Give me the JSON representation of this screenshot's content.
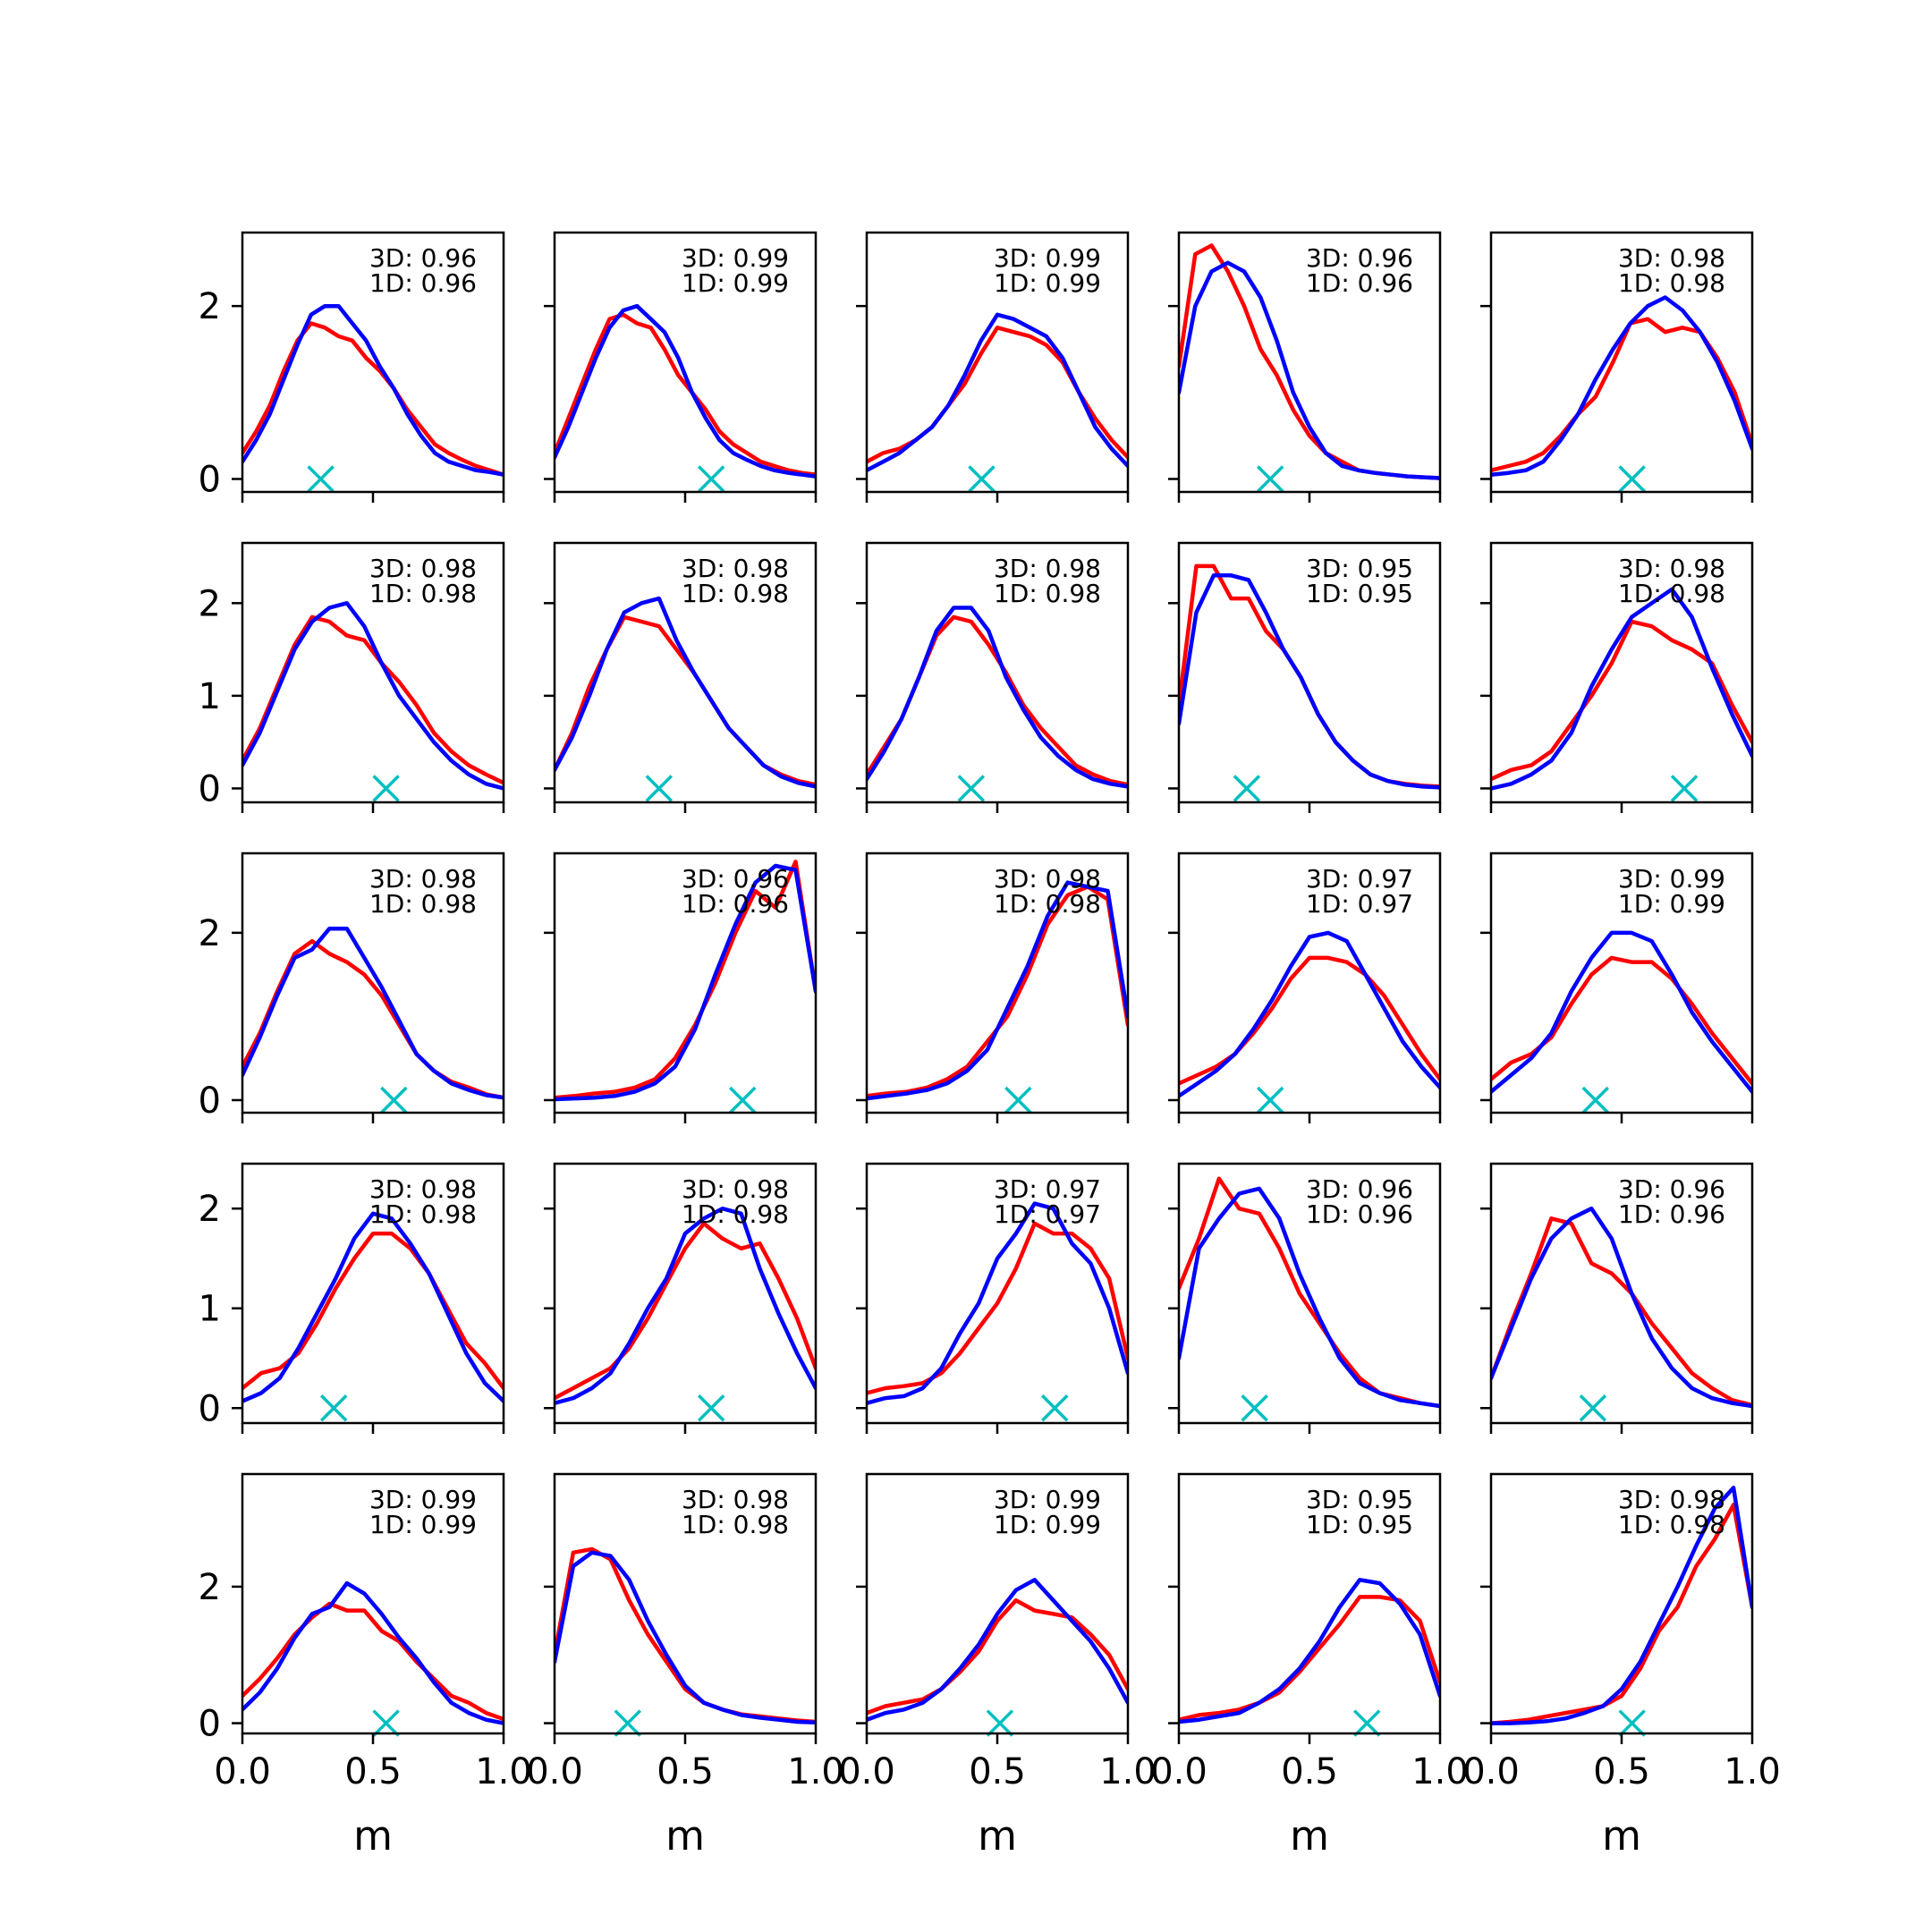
{
  "chart_data": {
    "type": "line",
    "layout": {
      "rows": 5,
      "cols": 5
    },
    "xlabel": "m",
    "xlim": [
      0,
      1
    ],
    "x_ticks": [
      "0.0",
      "0.5",
      "1.0"
    ],
    "row_ylim": [
      [
        -0.15,
        2.85
      ],
      [
        -0.15,
        2.65
      ],
      [
        -0.15,
        2.95
      ],
      [
        -0.15,
        2.45
      ],
      [
        -0.15,
        3.65
      ]
    ],
    "row_y_ticks": [
      [
        {
          "v": 0,
          "label": "0"
        },
        {
          "v": 2,
          "label": "2"
        }
      ],
      [
        {
          "v": 0,
          "label": "0"
        },
        {
          "v": 1,
          "label": "1"
        },
        {
          "v": 2,
          "label": "2"
        }
      ],
      [
        {
          "v": 0,
          "label": "0"
        },
        {
          "v": 2,
          "label": "2"
        }
      ],
      [
        {
          "v": 0,
          "label": "0"
        },
        {
          "v": 1,
          "label": "1"
        },
        {
          "v": 2,
          "label": "2"
        }
      ],
      [
        {
          "v": 0,
          "label": "0"
        },
        {
          "v": 2,
          "label": "2"
        }
      ]
    ],
    "series_colors": {
      "red": "#ff0000",
      "blue": "#0000ff",
      "marker": "#00bfbf"
    },
    "x": [
      0.0,
      0.05,
      0.1,
      0.15,
      0.2,
      0.25,
      0.3,
      0.35,
      0.4,
      0.45,
      0.5,
      0.55,
      0.6,
      0.65,
      0.7,
      0.75,
      0.8,
      0.85,
      0.9,
      0.95,
      1.0
    ],
    "panels": [
      {
        "stat_3d": "3D: 0.96",
        "stat_1d": "1D: 0.96",
        "marker_x": 0.3,
        "red": [
          0.3,
          0.55,
          0.85,
          1.25,
          1.6,
          1.8,
          1.75,
          1.65,
          1.6,
          1.4,
          1.25,
          1.05,
          0.8,
          0.6,
          0.4,
          0.3,
          0.22,
          0.15,
          0.1,
          0.05
        ],
        "blue": [
          0.2,
          0.45,
          0.75,
          1.15,
          1.55,
          1.9,
          2.0,
          2.0,
          1.8,
          1.6,
          1.3,
          1.05,
          0.75,
          0.5,
          0.3,
          0.2,
          0.15,
          0.1,
          0.08,
          0.05
        ]
      },
      {
        "stat_3d": "3D: 0.99",
        "stat_1d": "1D: 0.99",
        "marker_x": 0.6,
        "red": [
          0.3,
          0.7,
          1.1,
          1.5,
          1.85,
          1.9,
          1.8,
          1.75,
          1.5,
          1.2,
          1.0,
          0.8,
          0.55,
          0.4,
          0.3,
          0.2,
          0.15,
          0.1,
          0.07,
          0.05
        ],
        "blue": [
          0.25,
          0.6,
          1.0,
          1.4,
          1.75,
          1.95,
          2.0,
          1.85,
          1.7,
          1.4,
          1.0,
          0.7,
          0.45,
          0.3,
          0.22,
          0.15,
          0.1,
          0.07,
          0.05,
          0.03
        ]
      },
      {
        "stat_3d": "3D: 0.99",
        "stat_1d": "1D: 0.99",
        "marker_x": 0.44,
        "red": [
          0.2,
          0.3,
          0.35,
          0.45,
          0.6,
          0.85,
          1.1,
          1.45,
          1.75,
          1.7,
          1.65,
          1.55,
          1.35,
          1.0,
          0.7,
          0.45,
          0.25
        ],
        "blue": [
          0.1,
          0.2,
          0.3,
          0.45,
          0.6,
          0.85,
          1.2,
          1.6,
          1.9,
          1.85,
          1.75,
          1.65,
          1.4,
          1.0,
          0.6,
          0.35,
          0.15
        ]
      },
      {
        "stat_3d": "3D: 0.96",
        "stat_1d": "1D: 0.96",
        "marker_x": 0.35,
        "red": [
          1.3,
          2.6,
          2.7,
          2.4,
          2.0,
          1.5,
          1.2,
          0.8,
          0.5,
          0.3,
          0.2,
          0.1,
          0.07,
          0.05,
          0.03,
          0.02,
          0.01
        ],
        "blue": [
          1.0,
          2.0,
          2.4,
          2.5,
          2.4,
          2.1,
          1.6,
          1.0,
          0.6,
          0.3,
          0.15,
          0.1,
          0.07,
          0.05,
          0.03,
          0.02,
          0.01
        ]
      },
      {
        "stat_3d": "3D: 0.98",
        "stat_1d": "1D: 0.98",
        "marker_x": 0.54,
        "red": [
          0.1,
          0.15,
          0.2,
          0.3,
          0.5,
          0.75,
          0.95,
          1.35,
          1.8,
          1.85,
          1.7,
          1.75,
          1.7,
          1.4,
          1.0,
          0.4
        ],
        "blue": [
          0.05,
          0.07,
          0.1,
          0.2,
          0.45,
          0.75,
          1.15,
          1.5,
          1.8,
          2.0,
          2.1,
          1.95,
          1.7,
          1.35,
          0.9,
          0.35
        ]
      },
      {
        "stat_3d": "3D: 0.98",
        "stat_1d": "1D: 0.98",
        "marker_x": 0.55,
        "red": [
          0.3,
          0.65,
          1.1,
          1.55,
          1.85,
          1.8,
          1.65,
          1.6,
          1.35,
          1.15,
          0.9,
          0.6,
          0.4,
          0.25,
          0.15,
          0.06
        ],
        "blue": [
          0.25,
          0.6,
          1.05,
          1.5,
          1.8,
          1.95,
          2.0,
          1.75,
          1.35,
          1.0,
          0.75,
          0.5,
          0.3,
          0.15,
          0.05,
          0.0
        ]
      },
      {
        "stat_3d": "3D: 0.98",
        "stat_1d": "1D: 0.98",
        "marker_x": 0.4,
        "red": [
          0.2,
          0.6,
          1.1,
          1.5,
          1.85,
          1.8,
          1.75,
          1.5,
          1.25,
          0.95,
          0.65,
          0.45,
          0.25,
          0.15,
          0.08,
          0.04
        ],
        "blue": [
          0.2,
          0.55,
          1.0,
          1.5,
          1.9,
          2.0,
          2.05,
          1.6,
          1.25,
          0.95,
          0.65,
          0.45,
          0.25,
          0.13,
          0.06,
          0.02
        ]
      },
      {
        "stat_3d": "3D: 0.98",
        "stat_1d": "1D: 0.98",
        "marker_x": 0.4,
        "red": [
          0.15,
          0.45,
          0.75,
          1.2,
          1.65,
          1.85,
          1.8,
          1.55,
          1.25,
          0.9,
          0.65,
          0.45,
          0.25,
          0.15,
          0.08,
          0.04
        ],
        "blue": [
          0.1,
          0.4,
          0.75,
          1.2,
          1.7,
          1.95,
          1.95,
          1.7,
          1.2,
          0.85,
          0.55,
          0.35,
          0.2,
          0.1,
          0.05,
          0.02
        ]
      },
      {
        "stat_3d": "3D: 0.95",
        "stat_1d": "1D: 0.95",
        "marker_x": 0.26,
        "red": [
          0.9,
          2.4,
          2.4,
          2.05,
          2.05,
          1.7,
          1.5,
          1.2,
          0.8,
          0.5,
          0.3,
          0.15,
          0.08,
          0.05,
          0.03,
          0.02
        ],
        "blue": [
          0.7,
          1.9,
          2.3,
          2.3,
          2.25,
          1.9,
          1.5,
          1.2,
          0.8,
          0.5,
          0.3,
          0.15,
          0.08,
          0.04,
          0.02,
          0.01
        ]
      },
      {
        "stat_3d": "3D: 0.98",
        "stat_1d": "1D: 0.98",
        "marker_x": 0.74,
        "red": [
          0.1,
          0.2,
          0.25,
          0.4,
          0.7,
          1.0,
          1.35,
          1.8,
          1.75,
          1.6,
          1.5,
          1.35,
          0.9,
          0.5
        ],
        "blue": [
          0.0,
          0.05,
          0.15,
          0.3,
          0.6,
          1.1,
          1.5,
          1.85,
          2.0,
          2.15,
          1.85,
          1.3,
          0.8,
          0.35
        ]
      },
      {
        "stat_3d": "3D: 0.98",
        "stat_1d": "1D: 0.98",
        "marker_x": 0.58,
        "red": [
          0.4,
          0.8,
          1.3,
          1.75,
          1.9,
          1.75,
          1.65,
          1.5,
          1.25,
          0.9,
          0.55,
          0.35,
          0.22,
          0.15,
          0.07,
          0.03
        ],
        "blue": [
          0.3,
          0.75,
          1.25,
          1.7,
          1.8,
          2.05,
          2.05,
          1.7,
          1.35,
          0.95,
          0.55,
          0.35,
          0.2,
          0.12,
          0.06,
          0.03
        ]
      },
      {
        "stat_3d": "3D: 0.96",
        "stat_1d": "1D: 0.96",
        "marker_x": 0.72,
        "red": [
          0.03,
          0.05,
          0.08,
          0.1,
          0.15,
          0.25,
          0.5,
          0.9,
          1.4,
          2.0,
          2.5,
          2.3,
          2.85,
          1.3
        ],
        "blue": [
          0.01,
          0.02,
          0.03,
          0.05,
          0.1,
          0.2,
          0.4,
          0.85,
          1.5,
          2.1,
          2.6,
          2.8,
          2.75,
          1.3
        ]
      },
      {
        "stat_3d": "3D: 0.98",
        "stat_1d": "1D: 0.98",
        "marker_x": 0.58,
        "red": [
          0.05,
          0.08,
          0.1,
          0.15,
          0.25,
          0.4,
          0.7,
          1.0,
          1.5,
          2.1,
          2.45,
          2.55,
          2.4,
          0.9
        ],
        "blue": [
          0.02,
          0.05,
          0.08,
          0.12,
          0.2,
          0.35,
          0.6,
          1.1,
          1.6,
          2.2,
          2.6,
          2.55,
          2.5,
          1.0
        ]
      },
      {
        "stat_3d": "3D: 0.97",
        "stat_1d": "1D: 0.97",
        "marker_x": 0.35,
        "red": [
          0.2,
          0.3,
          0.4,
          0.55,
          0.8,
          1.1,
          1.45,
          1.7,
          1.7,
          1.65,
          1.5,
          1.25,
          0.9,
          0.55,
          0.25
        ],
        "blue": [
          0.05,
          0.2,
          0.35,
          0.55,
          0.85,
          1.2,
          1.6,
          1.95,
          2.0,
          1.9,
          1.5,
          1.1,
          0.7,
          0.4,
          0.15
        ]
      },
      {
        "stat_3d": "3D: 0.99",
        "stat_1d": "1D: 0.99",
        "marker_x": 0.4,
        "red": [
          0.25,
          0.45,
          0.55,
          0.75,
          1.15,
          1.5,
          1.7,
          1.65,
          1.65,
          1.45,
          1.15,
          0.8,
          0.5,
          0.2
        ],
        "blue": [
          0.1,
          0.3,
          0.5,
          0.8,
          1.3,
          1.7,
          2.0,
          2.0,
          1.9,
          1.5,
          1.05,
          0.7,
          0.4,
          0.1
        ]
      },
      {
        "stat_3d": "3D: 0.98",
        "stat_1d": "1D: 0.98",
        "marker_x": 0.35,
        "red": [
          0.2,
          0.35,
          0.4,
          0.55,
          0.85,
          1.2,
          1.5,
          1.75,
          1.75,
          1.6,
          1.35,
          1.0,
          0.65,
          0.45,
          0.2
        ],
        "blue": [
          0.07,
          0.15,
          0.3,
          0.6,
          0.95,
          1.3,
          1.7,
          1.95,
          1.9,
          1.65,
          1.35,
          0.95,
          0.55,
          0.25,
          0.07
        ]
      },
      {
        "stat_3d": "3D: 0.98",
        "stat_1d": "1D: 0.98",
        "marker_x": 0.6,
        "red": [
          0.1,
          0.2,
          0.3,
          0.4,
          0.6,
          0.9,
          1.25,
          1.6,
          1.85,
          1.7,
          1.6,
          1.65,
          1.3,
          0.9,
          0.4
        ],
        "blue": [
          0.05,
          0.1,
          0.2,
          0.35,
          0.65,
          1.0,
          1.3,
          1.75,
          1.9,
          2.0,
          1.95,
          1.4,
          0.95,
          0.55,
          0.2
        ]
      },
      {
        "stat_3d": "3D: 0.97",
        "stat_1d": "1D: 0.97",
        "marker_x": 0.72,
        "red": [
          0.15,
          0.2,
          0.22,
          0.25,
          0.35,
          0.55,
          0.8,
          1.05,
          1.4,
          1.85,
          1.75,
          1.75,
          1.6,
          1.3,
          0.5
        ],
        "blue": [
          0.05,
          0.1,
          0.12,
          0.2,
          0.4,
          0.75,
          1.05,
          1.5,
          1.75,
          2.05,
          2.0,
          1.65,
          1.45,
          1.0,
          0.35
        ]
      },
      {
        "stat_3d": "3D: 0.96",
        "stat_1d": "1D: 0.96",
        "marker_x": 0.29,
        "red": [
          1.2,
          1.7,
          2.3,
          2.0,
          1.95,
          1.6,
          1.15,
          0.85,
          0.55,
          0.3,
          0.15,
          0.1,
          0.05,
          0.02
        ],
        "blue": [
          0.5,
          1.6,
          1.9,
          2.15,
          2.2,
          1.9,
          1.35,
          0.9,
          0.5,
          0.25,
          0.15,
          0.08,
          0.05,
          0.02
        ]
      },
      {
        "stat_3d": "3D: 0.96",
        "stat_1d": "1D: 0.96",
        "marker_x": 0.39,
        "red": [
          0.3,
          0.85,
          1.35,
          1.9,
          1.85,
          1.45,
          1.35,
          1.15,
          0.85,
          0.6,
          0.35,
          0.2,
          0.08,
          0.03
        ],
        "blue": [
          0.3,
          0.8,
          1.3,
          1.7,
          1.9,
          2.0,
          1.7,
          1.15,
          0.7,
          0.4,
          0.2,
          0.1,
          0.05,
          0.02
        ]
      },
      {
        "stat_3d": "3D: 0.99",
        "stat_1d": "1D: 0.99",
        "marker_x": 0.55,
        "red": [
          0.4,
          0.65,
          0.95,
          1.3,
          1.55,
          1.75,
          1.65,
          1.65,
          1.35,
          1.2,
          0.9,
          0.65,
          0.4,
          0.3,
          0.15,
          0.06
        ],
        "blue": [
          0.2,
          0.45,
          0.8,
          1.25,
          1.6,
          1.7,
          2.05,
          1.9,
          1.6,
          1.25,
          0.95,
          0.6,
          0.3,
          0.15,
          0.05,
          0.0
        ]
      },
      {
        "stat_3d": "3D: 0.98",
        "stat_1d": "1D: 0.98",
        "marker_x": 0.28,
        "red": [
          1.0,
          2.5,
          2.55,
          2.4,
          1.8,
          1.3,
          0.9,
          0.5,
          0.3,
          0.2,
          0.13,
          0.1,
          0.07,
          0.04,
          0.02
        ],
        "blue": [
          0.9,
          2.3,
          2.5,
          2.45,
          2.1,
          1.5,
          1.0,
          0.55,
          0.3,
          0.2,
          0.12,
          0.08,
          0.05,
          0.02,
          0.01
        ]
      },
      {
        "stat_3d": "3D: 0.99",
        "stat_1d": "1D: 0.99",
        "marker_x": 0.51,
        "red": [
          0.15,
          0.25,
          0.3,
          0.35,
          0.5,
          0.75,
          1.05,
          1.5,
          1.8,
          1.65,
          1.6,
          1.55,
          1.3,
          1.0,
          0.5
        ],
        "blue": [
          0.05,
          0.15,
          0.2,
          0.3,
          0.5,
          0.8,
          1.15,
          1.6,
          1.95,
          2.1,
          1.8,
          1.5,
          1.2,
          0.8,
          0.3
        ]
      },
      {
        "stat_3d": "3D: 0.95",
        "stat_1d": "1D: 0.95",
        "marker_x": 0.72,
        "red": [
          0.05,
          0.12,
          0.15,
          0.2,
          0.3,
          0.45,
          0.75,
          1.1,
          1.45,
          1.85,
          1.85,
          1.8,
          1.5,
          0.6
        ],
        "blue": [
          0.02,
          0.05,
          0.1,
          0.15,
          0.3,
          0.5,
          0.8,
          1.2,
          1.7,
          2.1,
          2.05,
          1.75,
          1.3,
          0.4
        ]
      },
      {
        "stat_3d": "3D: 0.98",
        "stat_1d": "1D: 0.98",
        "marker_x": 0.54,
        "red": [
          0.0,
          0.02,
          0.05,
          0.1,
          0.15,
          0.2,
          0.25,
          0.4,
          0.8,
          1.35,
          1.7,
          2.3,
          2.7,
          3.2,
          1.7
        ],
        "blue": [
          0.0,
          0.0,
          0.01,
          0.03,
          0.07,
          0.15,
          0.25,
          0.5,
          0.9,
          1.45,
          2.0,
          2.6,
          3.15,
          3.45,
          1.7
        ]
      }
    ]
  }
}
